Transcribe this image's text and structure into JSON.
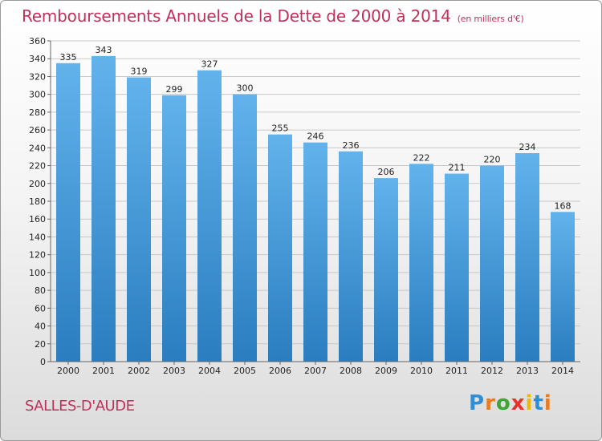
{
  "header": {
    "title": "Remboursements Annuels de la Dette de 2000 à 2014",
    "unit": "(en milliers d'€)"
  },
  "footer": {
    "commune": "SALLES-D'AUDE"
  },
  "logo": {
    "letters": [
      "P",
      "r",
      "o",
      "x",
      "i",
      "t",
      "i"
    ],
    "colors": [
      "#2e8fd6",
      "#e87c1e",
      "#3fa535",
      "#e6332a",
      "#f2b705",
      "#2e8fd6",
      "#e87c1e"
    ]
  },
  "colors": {
    "bar_top": "#62b3ec",
    "bar_bottom": "#2a7dbf",
    "title": "#c0305a"
  },
  "chart_data": {
    "type": "bar",
    "title": "Remboursements Annuels de la Dette de 2000 à 2014",
    "xlabel": "",
    "ylabel": "",
    "categories": [
      "2000",
      "2001",
      "2002",
      "2003",
      "2004",
      "2005",
      "2006",
      "2007",
      "2008",
      "2009",
      "2010",
      "2011",
      "2012",
      "2013",
      "2014"
    ],
    "values": [
      335,
      343,
      319,
      299,
      327,
      300,
      255,
      246,
      236,
      206,
      222,
      211,
      220,
      234,
      168
    ],
    "ylim": [
      0,
      360
    ],
    "yticks": [
      0,
      20,
      40,
      60,
      80,
      100,
      120,
      140,
      160,
      180,
      200,
      220,
      240,
      260,
      280,
      300,
      320,
      340,
      360
    ],
    "grid": true
  }
}
